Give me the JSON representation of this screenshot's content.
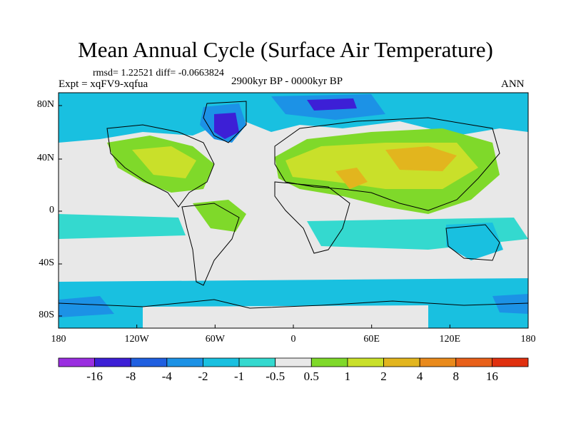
{
  "header": {
    "title": "Mean Annual Cycle (Surface Air Temperature)",
    "stats": "rmsd= 1.22521 diff= -0.0663824",
    "experiment": "Expt = xqFV9-xqfua",
    "period": "2900kyr BP - 0000kyr BP",
    "season": "ANN"
  },
  "axes": {
    "lat_labels": [
      "80N",
      "40N",
      "0",
      "40S",
      "80S"
    ],
    "lon_labels": [
      "180",
      "120W",
      "60W",
      "0",
      "60E",
      "120E",
      "180"
    ]
  },
  "colorbar": {
    "labels": [
      "-16",
      "-8",
      "-4",
      "-2",
      "-1",
      "-0.5",
      "0.5",
      "1",
      "2",
      "4",
      "8",
      "16"
    ],
    "colors": [
      "#9a2ee0",
      "#3d1fd6",
      "#1f5fe0",
      "#1c92e6",
      "#19c0e0",
      "#34d9cf",
      "#e8e8e8",
      "#7fd92a",
      "#c9e02a",
      "#e2b51e",
      "#e98a1c",
      "#e8601a",
      "#e0300f"
    ]
  },
  "map_colors": {
    "neutral": "#e8e8e8",
    "light_blue": "#34d9cf",
    "cyan": "#19c0e0",
    "blue": "#1c92e6",
    "deep_blue": "#3d1fd6",
    "green": "#7fd92a",
    "yellow_green": "#c9e02a",
    "orange": "#e2b51e",
    "coast": "#000000"
  }
}
